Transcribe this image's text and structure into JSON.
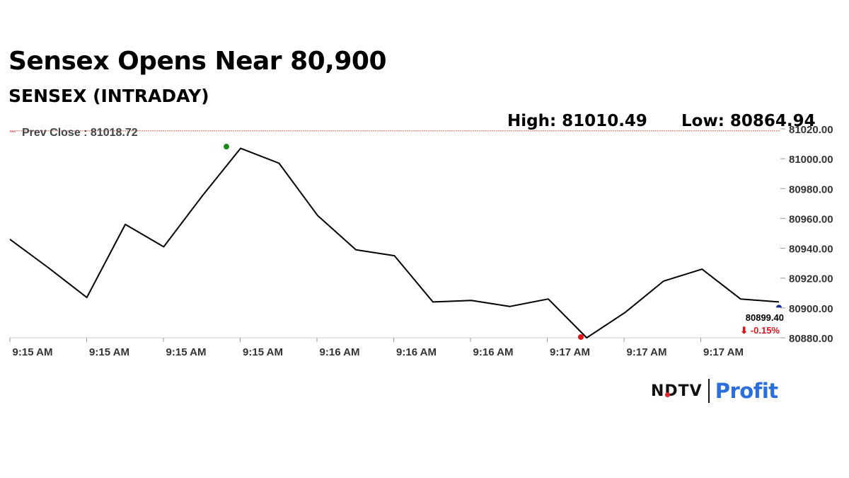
{
  "header": {
    "title": "Sensex Opens Near 80,900",
    "subtitle": "SENSEX (INTRADAY)",
    "high_label": "High: 81010.49",
    "low_label": "Low: 80864.94"
  },
  "brand": {
    "left": "NDTV",
    "right": "Profit"
  },
  "colors": {
    "line": "#000000",
    "prev_close_line": "#e06666",
    "high_marker": "#1a8a1a",
    "low_marker": "#e0151b",
    "last_marker": "#1a2a9a",
    "change_text": "#e0151b",
    "brand_blue": "#2a6fdb",
    "brand_pink": "#c0379b"
  },
  "chart_data": {
    "type": "line",
    "title": "SENSEX (INTRADAY)",
    "xlabel": "",
    "ylabel": "",
    "ylim": [
      80880,
      81020
    ],
    "yticks": [
      "81020.00",
      "81000.00",
      "80980.00",
      "80960.00",
      "80940.00",
      "80920.00",
      "80900.00",
      "80880.00"
    ],
    "xticks": [
      "9:15 AM",
      "9:15 AM",
      "9:15 AM",
      "9:15 AM",
      "9:16 AM",
      "9:16 AM",
      "9:16 AM",
      "9:17 AM",
      "9:17 AM",
      "9:17 AM"
    ],
    "series": [
      {
        "values": [
          80946,
          80927,
          80907,
          80956,
          80941,
          80975,
          81007,
          80997,
          80962,
          80939,
          80935,
          80904,
          80905,
          80901,
          80906,
          80880,
          80897,
          80918,
          80926,
          80906,
          80904
        ]
      }
    ],
    "prev_close": {
      "label": "Prev Close : 81018.72",
      "value": 81018.72
    },
    "high_marker_value": 81010.49,
    "low_marker_value": 80880.5,
    "last_value_label": "80899.40",
    "change_label": "⬇ -0.15%",
    "grid": false
  }
}
